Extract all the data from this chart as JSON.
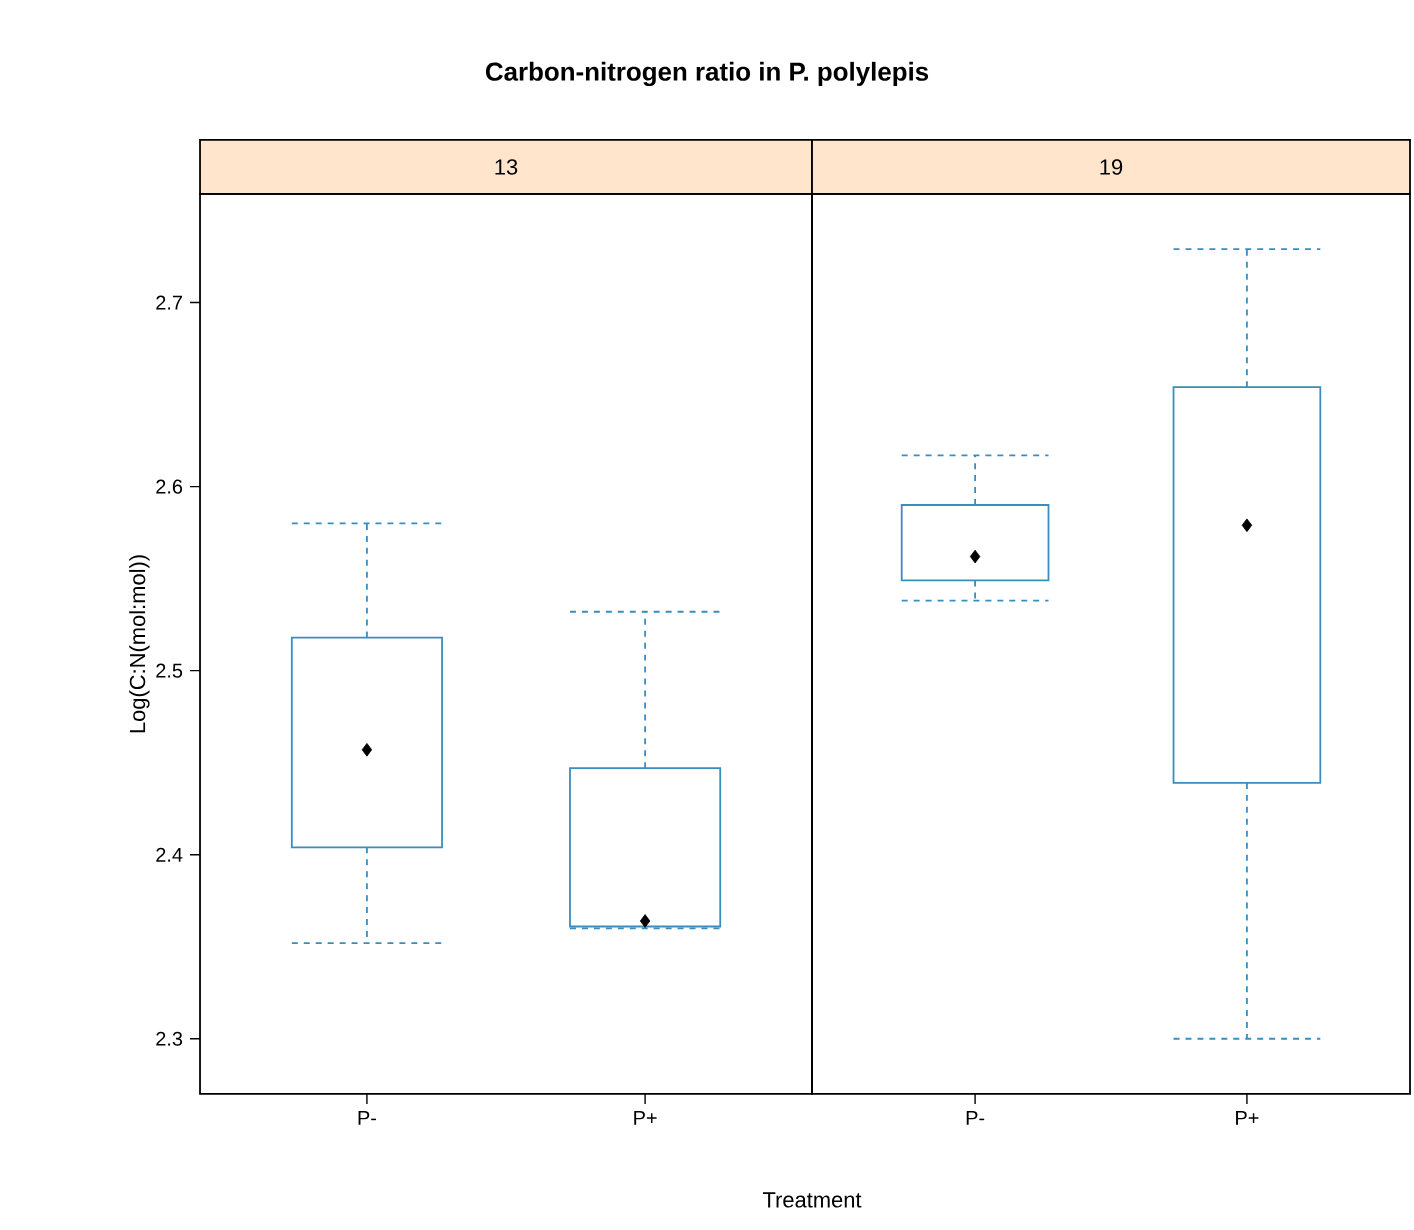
{
  "chart_data": [
    {
      "type": "box",
      "title": "Carbon-nitrogen ratio in P. polylepis",
      "subtitle": "13",
      "xlabel": "Treatment",
      "ylabel": "Log(C:N(mol:mol))",
      "categories": [
        "P-",
        "P+"
      ],
      "color": "#3a8dbf",
      "ylim": [
        2.27,
        2.759
      ],
      "yticks": [
        2.3,
        2.4,
        2.5,
        2.6,
        2.7
      ],
      "boxes": [
        {
          "low": 2.352,
          "q1": 2.404,
          "median": 2.457,
          "q3": 2.518,
          "high": 2.58
        },
        {
          "low": 2.36,
          "q1": 2.361,
          "median": 2.364,
          "q3": 2.447,
          "high": 2.532
        }
      ]
    },
    {
      "type": "box",
      "subtitle": "19",
      "categories": [
        "P-",
        "P+"
      ],
      "color": "#3a8dbf",
      "ylim": [
        2.27,
        2.759
      ],
      "yticks": [
        2.3,
        2.4,
        2.5,
        2.6,
        2.7
      ],
      "tick_labels": "x",
      "boxes": [
        {
          "low": 2.538,
          "q1": 2.549,
          "median": 2.562,
          "q3": 2.59,
          "high": 2.617
        },
        {
          "low": 2.3,
          "q1": 2.439,
          "median": 2.579,
          "q3": 2.654,
          "high": 2.729
        }
      ]
    }
  ]
}
